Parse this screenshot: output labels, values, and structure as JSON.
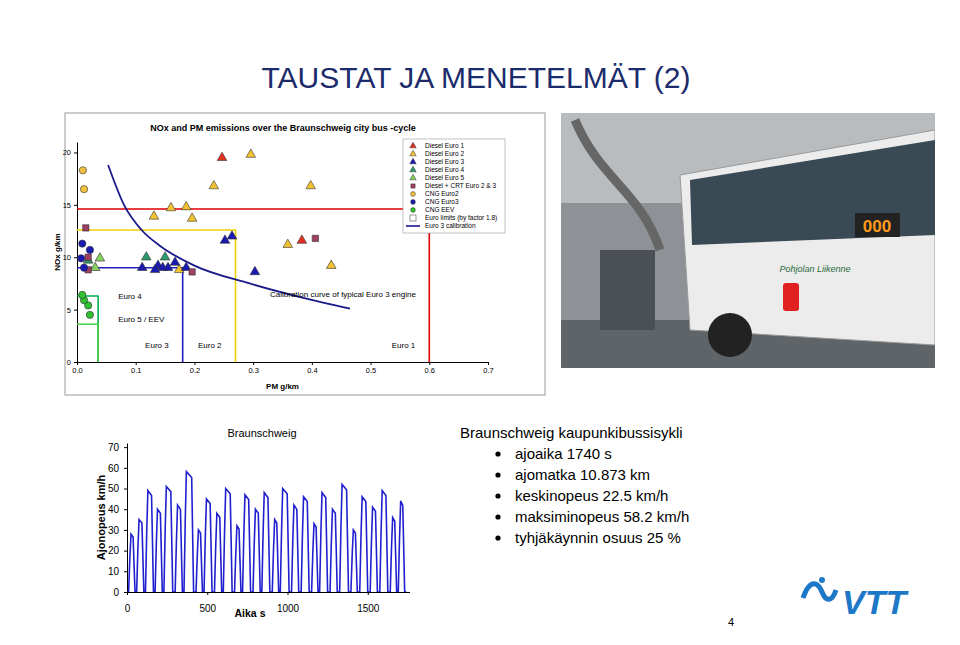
{
  "title": "TAUSTAT JA MENETELMÄT (2)",
  "chart_data": [
    {
      "type": "scatter",
      "title": "NOx and PM emissions over the Braunschweig city bus -cycle",
      "x_label": "PM g/km",
      "y_label": "NOx g/km",
      "xlim": [
        0,
        0.7
      ],
      "xticks": [
        {
          "value": 0,
          "label": "0.0"
        },
        0.1,
        0.2,
        0.3,
        0.4,
        0.5,
        0.6,
        0.7
      ],
      "ylim": [
        0,
        21
      ],
      "yticks": [
        0,
        5,
        10,
        15,
        20
      ],
      "grid": false,
      "legend": "top-right",
      "series": [
        {
          "name": "Diesel Euro 1",
          "marker": "triangle",
          "color": "#e03020",
          "x": [
            0.247,
            0.383
          ],
          "values": [
            19.5,
            11.6
          ]
        },
        {
          "name": "Diesel Euro 2",
          "marker": "triangle",
          "color": "#f2c230",
          "x": [
            0.296,
            0.233,
            0.16,
            0.131,
            0.196,
            0.186,
            0.398,
            0.359,
            0.433,
            0.174
          ],
          "values": [
            19.8,
            16.8,
            14.7,
            13.9,
            13.7,
            14.8,
            16.8,
            11.2,
            9.2,
            8.8
          ]
        },
        {
          "name": "Diesel Euro 3",
          "marker": "triangle",
          "color": "#1a1ab0",
          "x": [
            0.264,
            0.252,
            0.138,
            0.111,
            0.133,
            0.146,
            0.167,
            0.155,
            0.303,
            0.186
          ],
          "values": [
            12.0,
            11.6,
            9.2,
            9.0,
            8.8,
            9.0,
            9.5,
            9.0,
            8.6,
            9.0
          ]
        },
        {
          "name": "Diesel Euro 4",
          "marker": "triangle",
          "color": "#2e9a6a",
          "x": [
            0.15,
            0.118,
            0.019
          ],
          "values": [
            10.0,
            10.0,
            9.7
          ]
        },
        {
          "name": "Diesel Euro 5",
          "marker": "triangle",
          "color": "#86d060",
          "x": [
            0.039,
            0.031
          ],
          "values": [
            9.9,
            9.0
          ]
        },
        {
          "name": "Diesel + CRT Euro 2 & 3",
          "marker": "square",
          "color": "#a04060",
          "x": [
            0.015,
            0.019,
            0.019,
            0.196,
            0.406
          ],
          "values": [
            12.8,
            10.0,
            8.8,
            8.6,
            11.8
          ]
        },
        {
          "name": "CNG Euro2",
          "marker": "circle",
          "color": "#f0c040",
          "x": [
            0.012,
            0.01
          ],
          "values": [
            16.5,
            18.3
          ]
        },
        {
          "name": "CNG Euro3",
          "marker": "circle",
          "color": "#1a1ab0",
          "x": [
            0.009,
            0.007,
            0.012,
            0.022
          ],
          "values": [
            11.3,
            9.9,
            9.0,
            10.7
          ]
        },
        {
          "name": "CNG EEV",
          "marker": "circle",
          "color": "#30c030",
          "x": [
            0.019,
            0.012,
            0.022,
            0.009
          ],
          "values": [
            5.4,
            5.9,
            4.5,
            6.4
          ]
        },
        {
          "name": "Euro 3 calibration",
          "type": "line",
          "color": "#1a1a8a",
          "x": [
            0.053,
            0.08,
            0.11,
            0.141,
            0.2,
            0.294,
            0.38,
            0.465
          ],
          "values": [
            18.8,
            15.0,
            12.6,
            11.1,
            9.2,
            7.5,
            6.2,
            5.1
          ]
        }
      ],
      "limits_legend": "Euro limits (by factor 1.8)",
      "limits": [
        {
          "name": "Euro 1",
          "x": 0.6,
          "y": 14.6,
          "color": "#e00000"
        },
        {
          "name": "Euro 2",
          "x": 0.27,
          "y": 12.6,
          "color": "#f2d000"
        },
        {
          "name": "Euro 3",
          "x": 0.18,
          "y": 9.0,
          "color": "#2020c0"
        },
        {
          "name": "Euro 4",
          "x": 0.036,
          "y": 6.3,
          "color": "#00b050"
        },
        {
          "name": "Euro 5 / EEV",
          "x": 0.036,
          "y": 3.6,
          "color": "#40d040"
        }
      ],
      "annotations": [
        "Calibration curve of typical Euro 3 engine"
      ]
    },
    {
      "type": "line",
      "title": "Braunschweig",
      "x_label": "Aika s",
      "y_label": "Ajonopeus km/h",
      "xlim": [
        0,
        1760
      ],
      "xticks": [
        0,
        500,
        1000,
        1500
      ],
      "ylim": [
        0,
        72
      ],
      "yticks": [
        0,
        10,
        20,
        30,
        40,
        50,
        60,
        70
      ],
      "grid": false,
      "color": "#2020d0",
      "x": [
        0,
        10,
        18,
        25,
        38,
        50,
        60,
        68,
        75,
        93,
        105,
        115,
        123,
        130,
        153,
        165,
        175,
        183,
        190,
        208,
        220,
        230,
        238,
        245,
        273,
        285,
        300,
        308,
        315,
        333,
        345,
        355,
        363,
        370,
        403,
        415,
        430,
        438,
        445,
        458,
        470,
        480,
        488,
        495,
        518,
        530,
        545,
        553,
        560,
        578,
        590,
        600,
        608,
        615,
        643,
        655,
        670,
        678,
        685,
        698,
        710,
        720,
        728,
        735,
        758,
        770,
        785,
        793,
        800,
        818,
        830,
        840,
        848,
        855,
        878,
        890,
        905,
        913,
        920,
        933,
        945,
        955,
        963,
        970,
        998,
        1010,
        1025,
        1033,
        1040,
        1058,
        1070,
        1085,
        1093,
        1100,
        1123,
        1135,
        1150,
        1158,
        1165,
        1178,
        1190,
        1200,
        1208,
        1215,
        1238,
        1250,
        1265,
        1273,
        1280,
        1298,
        1310,
        1325,
        1333,
        1340,
        1368,
        1380,
        1395,
        1403,
        1410,
        1423,
        1435,
        1450,
        1458,
        1465,
        1488,
        1500,
        1515,
        1523,
        1530,
        1548,
        1560,
        1575,
        1583,
        1590,
        1613,
        1625,
        1640,
        1648,
        1655,
        1668,
        1680,
        1690,
        1698,
        1705,
        1718,
        1730,
        1740
      ],
      "values": [
        0,
        0,
        16.8,
        28,
        26.6,
        0,
        0,
        21,
        35,
        33.3,
        0,
        0,
        29.4,
        49,
        46.6,
        0,
        0,
        24,
        40,
        38,
        0,
        0,
        30.6,
        51,
        48.5,
        0,
        0,
        25.2,
        42,
        39.9,
        0,
        0,
        34.9,
        58.2,
        55.3,
        0,
        0,
        18,
        30,
        28.5,
        0,
        0,
        27,
        45,
        42.8,
        0,
        0,
        22.8,
        38,
        36.1,
        0,
        0,
        30,
        50,
        47.5,
        0,
        0,
        19.2,
        32,
        30.4,
        0,
        0,
        28.2,
        47,
        44.7,
        0,
        0,
        24,
        40,
        38,
        0,
        0,
        28.8,
        48,
        45.6,
        0,
        0,
        21,
        35,
        33.3,
        0,
        0,
        30,
        50,
        47.5,
        0,
        0,
        25.2,
        42,
        39.9,
        0,
        0,
        27.6,
        46,
        43.7,
        0,
        0,
        19.8,
        33,
        31.4,
        0,
        0,
        28.8,
        48,
        45.6,
        0,
        0,
        24,
        40,
        38,
        0,
        0,
        31.2,
        52,
        49.4,
        0,
        0,
        18,
        30,
        28.5,
        0,
        0,
        27.6,
        46,
        43.7,
        0,
        0,
        24.6,
        41,
        39,
        0,
        0,
        29.4,
        49,
        46.6,
        0,
        0,
        21.6,
        36,
        34.2,
        0,
        0,
        26.4,
        44,
        41.8,
        0,
        0
      ]
    }
  ],
  "text_panel": {
    "heading": "Braunschweig kaupunkibussisykli",
    "bullets": [
      "ajoaika 1740 s",
      "ajomatka 10.873 km",
      "keskinopeus 22.5 km/h",
      "maksiminopeus 58.2 km/h",
      "tyhjäkäynnin osuus 25 %"
    ]
  },
  "photo_text": [
    "000",
    "Pohjolan Liikenne"
  ],
  "logo": "VTT",
  "page_number": 4
}
